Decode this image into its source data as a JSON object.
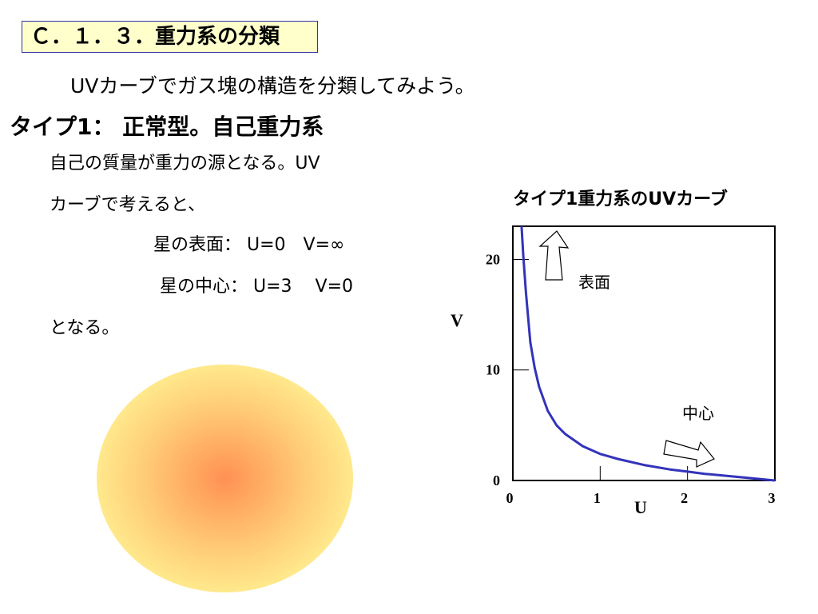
{
  "section_title": "Ｃ．１．３．重力系の分類",
  "intro": "UVカーブでガス塊の構造を分類してみよう。",
  "type_heading": "タイプ1： 正常型。自己重力系",
  "description": {
    "line1": "自己の質量が重力の源となる。UV",
    "line2": "カーブで考えると、",
    "surface": "星の表面：  U=0　V=∞",
    "center": "星の中心：  U=3　 V=0",
    "result": "となる。"
  },
  "colors": {
    "curve": "#3333bb",
    "title_box_bg": "#ffffcc",
    "title_box_border": "#3333aa",
    "star_core": "#ff9055",
    "star_edge": "#fff590"
  },
  "chart_data": {
    "type": "line",
    "title": "タイプ1重力系のUVカーブ",
    "xlabel": "U",
    "ylabel": "V",
    "xlim": [
      0,
      3
    ],
    "ylim": [
      0,
      23
    ],
    "x_ticks": [
      0,
      1,
      2,
      3
    ],
    "y_ticks": [
      0,
      10,
      20
    ],
    "series": [
      {
        "x": [
          0.1,
          0.12,
          0.15,
          0.2,
          0.25,
          0.3,
          0.4,
          0.5,
          0.6,
          0.8,
          1.0,
          1.2,
          1.5,
          1.8,
          2.0,
          2.2,
          2.5,
          2.8,
          3.0
        ],
        "y": [
          23.0,
          20.3,
          17.0,
          12.5,
          10.2,
          8.5,
          6.3,
          5.0,
          4.2,
          3.1,
          2.4,
          1.95,
          1.4,
          1.0,
          0.8,
          0.6,
          0.38,
          0.15,
          0.0
        ]
      }
    ],
    "annotations": [
      {
        "label": "表面",
        "x": 0.35,
        "y": 20
      },
      {
        "label": "中心",
        "x": 2.1,
        "y": 3
      }
    ]
  }
}
